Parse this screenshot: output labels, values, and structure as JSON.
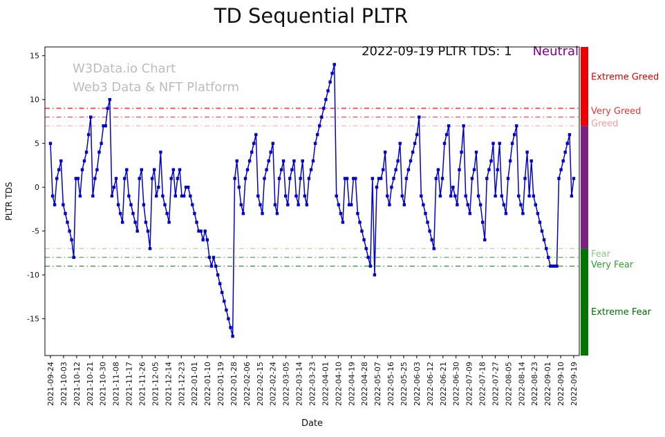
{
  "chart": {
    "watermark": {
      "line1": "W3Data.io Chart",
      "line2": "Web3 Data & NFT Platform"
    },
    "annotation": {
      "text": "2022-09-19 PLTR TDS: 1",
      "status": "Neutral",
      "status_color": "#800080"
    }
  },
  "chart_data": {
    "type": "line",
    "title": "TD Sequential PLTR",
    "xlabel": "Date",
    "ylabel": "PLTR TDS",
    "ylim": [
      -19.2,
      16
    ],
    "yticks": [
      15,
      10,
      5,
      0,
      -5,
      -10,
      -15
    ],
    "x_tick_labels": [
      "2021-09-24",
      "2021-10-03",
      "2021-10-12",
      "2021-10-21",
      "2021-10-30",
      "2021-11-08",
      "2021-11-17",
      "2021-11-26",
      "2021-12-05",
      "2021-12-14",
      "2021-12-23",
      "2022-01-01",
      "2022-01-10",
      "2022-01-19",
      "2022-01-28",
      "2022-02-06",
      "2022-02-15",
      "2022-02-24",
      "2022-03-05",
      "2022-03-14",
      "2022-03-23",
      "2022-04-01",
      "2022-04-10",
      "2022-04-19",
      "2022-04-28",
      "2022-05-07",
      "2022-05-16",
      "2022-05-25",
      "2022-06-03",
      "2022-06-12",
      "2022-06-21",
      "2022-06-30",
      "2022-07-09",
      "2022-07-18",
      "2022-07-27",
      "2022-08-05",
      "2022-08-14",
      "2022-08-23",
      "2022-09-01",
      "2022-09-10",
      "2022-09-19"
    ],
    "series": [
      {
        "name": "PLTR TDS",
        "color": "#0000cc",
        "marker": "square",
        "values": [
          5,
          -1,
          -2,
          1,
          2,
          3,
          -2,
          -3,
          -4,
          -5,
          -6,
          -8,
          1,
          1,
          -1,
          2,
          3,
          4,
          6,
          8,
          -1,
          1,
          2,
          4,
          5,
          7,
          7,
          9,
          10,
          -1,
          0,
          1,
          -2,
          -3,
          -4,
          1,
          2,
          -1,
          -2,
          -3,
          -4,
          -5,
          1,
          2,
          -2,
          -4,
          -5,
          -7,
          1,
          2,
          -1,
          0,
          4,
          -1,
          -2,
          -3,
          -4,
          1,
          2,
          -1,
          1,
          2,
          -1,
          -1,
          0,
          0,
          -1,
          -2,
          -3,
          -4,
          -5,
          -5,
          -6,
          -5,
          -6,
          -8,
          -9,
          -8,
          -9,
          -10,
          -11,
          -12,
          -13,
          -14,
          -15,
          -16,
          -17,
          1,
          3,
          0,
          -2,
          -3,
          1,
          2,
          3,
          4,
          5,
          6,
          -1,
          -2,
          -3,
          1,
          2,
          3,
          4,
          5,
          -2,
          -3,
          1,
          2,
          3,
          -1,
          -2,
          1,
          2,
          3,
          -1,
          -2,
          1,
          3,
          -1,
          -2,
          1,
          2,
          3,
          5,
          6,
          7,
          8,
          9,
          10,
          11,
          12,
          13,
          14,
          -1,
          -2,
          -3,
          -4,
          1,
          1,
          -2,
          -2,
          1,
          1,
          -3,
          -4,
          -5,
          -6,
          -7,
          -8,
          -9,
          1,
          -10,
          0,
          1,
          1,
          2,
          4,
          -1,
          -2,
          0,
          1,
          2,
          3,
          5,
          -1,
          -2,
          1,
          2,
          3,
          4,
          5,
          6,
          8,
          -1,
          -2,
          -3,
          -4,
          -5,
          -6,
          -7,
          1,
          2,
          -1,
          1,
          5,
          6,
          7,
          -1,
          0,
          -1,
          -2,
          2,
          4,
          7,
          -1,
          -2,
          -3,
          1,
          2,
          4,
          -1,
          -2,
          -4,
          -6,
          1,
          2,
          3,
          5,
          -1,
          2,
          5,
          -1,
          -2,
          -3,
          1,
          3,
          5,
          6,
          7,
          -1,
          -2,
          -3,
          1,
          4,
          -1,
          3,
          -1,
          -2,
          -3,
          -4,
          -5,
          -6,
          -7,
          -8,
          -9,
          -9,
          -9,
          -9,
          1,
          2,
          3,
          4,
          5,
          6,
          -1,
          1
        ]
      }
    ],
    "reference_lines": [
      {
        "y": 9,
        "color": "#ff0000"
      },
      {
        "y": 8,
        "color": "#ff4d4d"
      },
      {
        "y": 7,
        "color": "#ffaaaa"
      },
      {
        "y": -7,
        "color": "#9ed49e"
      },
      {
        "y": -8,
        "color": "#55aa55"
      },
      {
        "y": -9,
        "color": "#1f8f1f"
      }
    ],
    "zones": [
      {
        "from": 7,
        "to": 16,
        "color": "#ee0000",
        "label": "Extreme Greed"
      },
      {
        "from": -7,
        "to": 7,
        "color": "#7d2181",
        "label": "Neutral"
      },
      {
        "from": -19.2,
        "to": -7,
        "color": "#007500",
        "label": "Extreme Fear"
      }
    ],
    "right_labels": [
      {
        "text": "Extreme Greed",
        "y": 12.6,
        "color": "#dd0000"
      },
      {
        "text": "Very Greed",
        "y": 8.7,
        "color": "#ee3333"
      },
      {
        "text": "Greed",
        "y": 7.3,
        "color": "#ff9999"
      },
      {
        "text": "Fear",
        "y": -7.6,
        "color": "#8cc88c"
      },
      {
        "text": "Very Fear",
        "y": -8.8,
        "color": "#2e9e2e"
      },
      {
        "text": "Extreme Fear",
        "y": -14.2,
        "color": "#006e00"
      }
    ],
    "legend_position": "none",
    "grid": false
  }
}
